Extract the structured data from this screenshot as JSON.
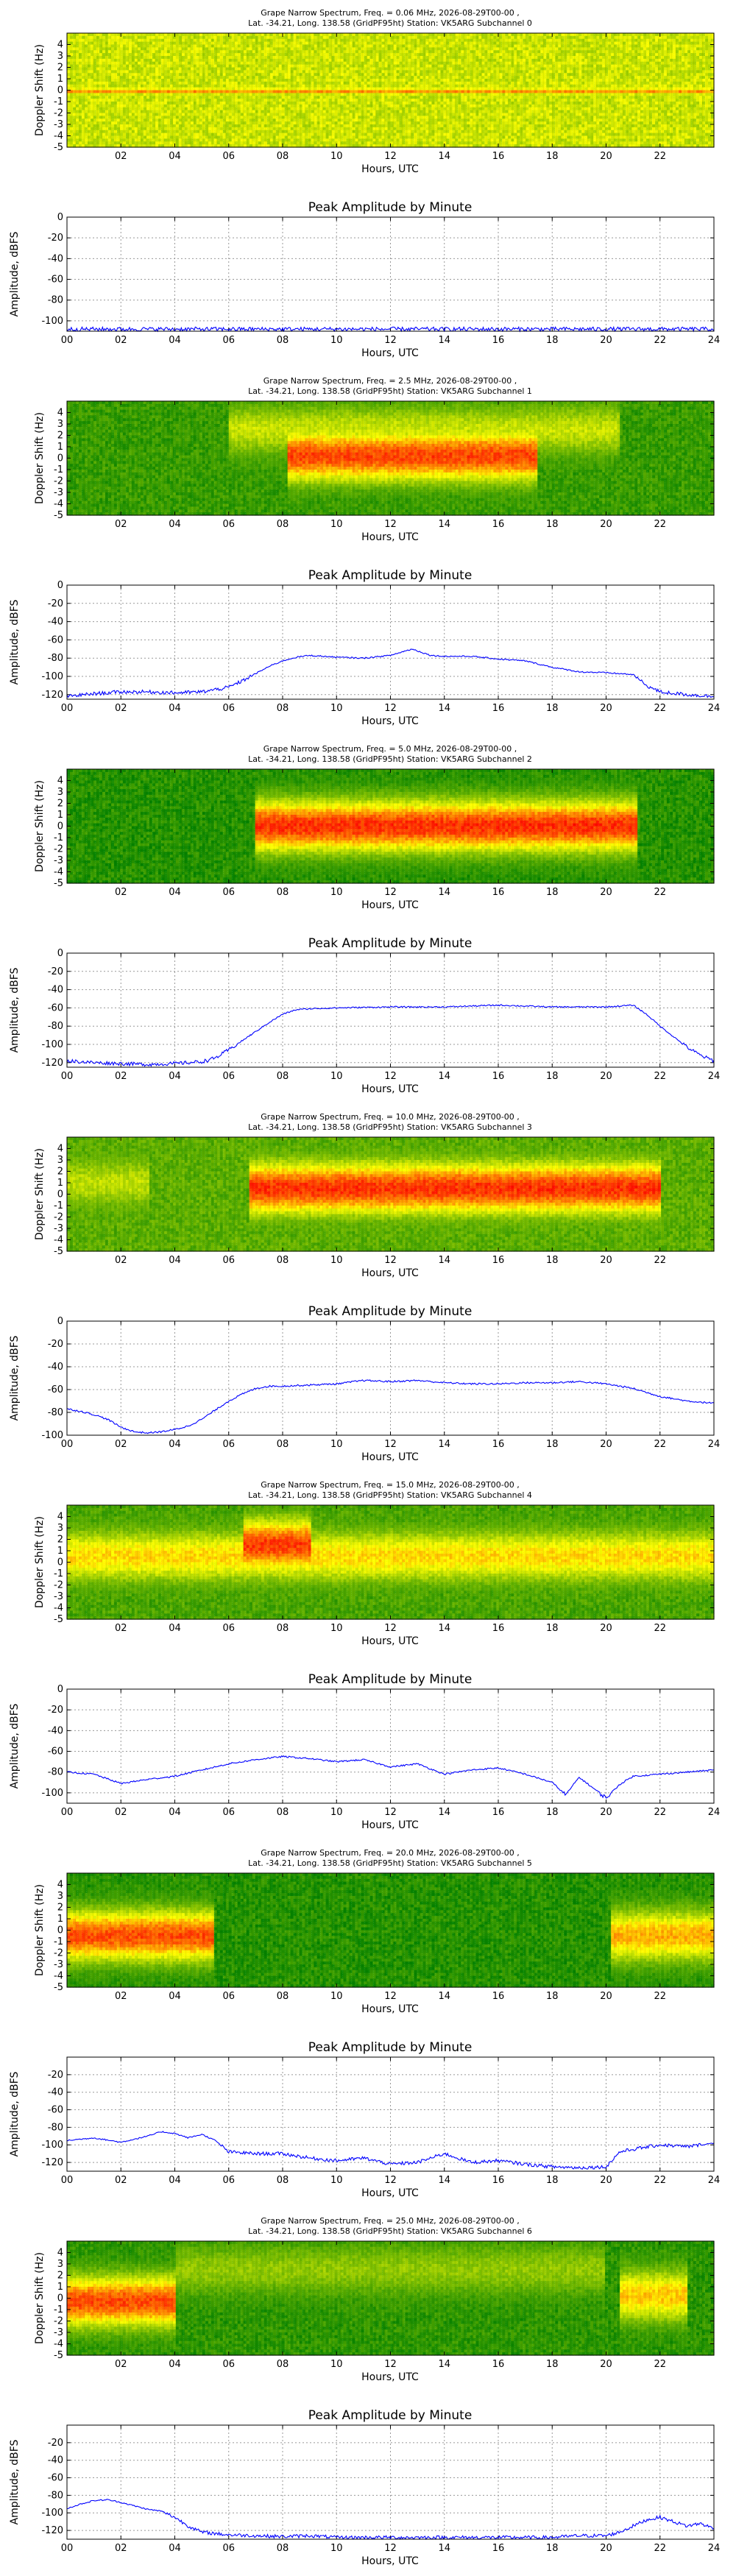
{
  "chart_data": [
    {
      "type": "heatmap",
      "subchannel": 0,
      "title_line1": "Grape Narrow Spectrum, Freq. = 0.06 MHz, 2026-08-29T00-00 ,",
      "title_line2": "Lat. -34.21, Long. 138.58 (GridPF95ht) Station: VK5ARG Subchannel 0",
      "xlabel": "Hours, UTC",
      "ylabel": "Doppler Shift (Hz)",
      "xlim": [
        0,
        24
      ],
      "ylim": [
        -5,
        5
      ],
      "xticks": [
        "02",
        "04",
        "06",
        "08",
        "10",
        "12",
        "14",
        "16",
        "18",
        "20",
        "22"
      ],
      "yticks": [
        "4",
        "3",
        "2",
        "1",
        "0",
        "-1",
        "-2",
        "-3",
        "-4",
        "-5"
      ],
      "colormap": [
        "#008000",
        "#80c000",
        "#ffff00",
        "#ff8000",
        "#ff0000"
      ],
      "features": [
        {
          "start": 0,
          "end": 24,
          "doppler": -0.1,
          "level": 0.62
        }
      ],
      "background_level": 0.5
    },
    {
      "type": "line",
      "title": "Peak Amplitude by Minute",
      "xlabel": "Hours, UTC",
      "ylabel": "Amplitude, dBFS",
      "xlim": [
        0,
        24
      ],
      "ylim": [
        -110,
        0
      ],
      "xticks": [
        "00",
        "02",
        "04",
        "06",
        "08",
        "10",
        "12",
        "14",
        "16",
        "18",
        "20",
        "22",
        "24"
      ],
      "yticks": [
        "0",
        "-20",
        "-40",
        "-60",
        "-80",
        "-100"
      ],
      "grid": true,
      "line_color": "#0000ff",
      "x": [
        0,
        1,
        2,
        3,
        4,
        5,
        6,
        7,
        8,
        9,
        10,
        11,
        12,
        13,
        14,
        15,
        16,
        17,
        18,
        19,
        20,
        21,
        22,
        23,
        24
      ],
      "y": [
        -108,
        -108,
        -108,
        -108,
        -108,
        -108,
        -108,
        -108,
        -108,
        -108,
        -108,
        -108,
        -108,
        -108,
        -108,
        -108,
        -108,
        -108,
        -108,
        -108,
        -108,
        -108,
        -108,
        -108,
        -108
      ]
    },
    {
      "type": "heatmap",
      "subchannel": 1,
      "title_line1": "Grape Narrow Spectrum, Freq. = 2.5 MHz, 2026-08-29T00-00 ,",
      "title_line2": "Lat. -34.21, Long. 138.58 (GridPF95ht) Station: VK5ARG Subchannel 1",
      "xlabel": "Hours, UTC",
      "ylabel": "Doppler Shift (Hz)",
      "xlim": [
        0,
        24
      ],
      "ylim": [
        -5,
        5
      ],
      "xticks": [
        "02",
        "04",
        "06",
        "08",
        "10",
        "12",
        "14",
        "16",
        "18",
        "20",
        "22"
      ],
      "yticks": [
        "4",
        "3",
        "2",
        "1",
        "0",
        "-1",
        "-2",
        "-3",
        "-4",
        "-5"
      ],
      "features": [
        {
          "start": 8.2,
          "end": 17.5,
          "doppler": 0.2,
          "level": 0.85
        },
        {
          "start": 6.0,
          "end": 20.5,
          "doppler": 2.5,
          "level": 0.45
        }
      ],
      "background_level": 0.15
    },
    {
      "type": "line",
      "title": "Peak Amplitude by Minute",
      "xlabel": "Hours, UTC",
      "ylabel": "Amplitude, dBFS",
      "xlim": [
        0,
        24
      ],
      "ylim": [
        -125,
        0
      ],
      "xticks": [
        "00",
        "02",
        "04",
        "06",
        "08",
        "10",
        "12",
        "14",
        "16",
        "18",
        "20",
        "22",
        "24"
      ],
      "yticks": [
        "0",
        "-20",
        "-40",
        "-60",
        "-80",
        "-100",
        "-120"
      ],
      "grid": true,
      "line_color": "#0000ff",
      "x": [
        0,
        1,
        2,
        3,
        4,
        5,
        6,
        6.5,
        7,
        7.5,
        8,
        8.5,
        9,
        10,
        11,
        12,
        12.8,
        13.5,
        14,
        15,
        16,
        17,
        18,
        19,
        20,
        21,
        21.5,
        22,
        23,
        24
      ],
      "y": [
        -122,
        -119,
        -117,
        -117,
        -118,
        -117,
        -112,
        -105,
        -97,
        -89,
        -83,
        -79,
        -77,
        -79,
        -80,
        -77,
        -70,
        -77,
        -78,
        -78,
        -81,
        -83,
        -90,
        -95,
        -96,
        -98,
        -110,
        -117,
        -120,
        -122
      ]
    },
    {
      "type": "heatmap",
      "subchannel": 2,
      "title_line1": "Grape Narrow Spectrum, Freq. = 5.0 MHz, 2026-08-29T00-00 ,",
      "title_line2": "Lat. -34.21, Long. 138.58 (GridPF95ht) Station: VK5ARG Subchannel 2",
      "xlabel": "Hours, UTC",
      "ylabel": "Doppler Shift (Hz)",
      "xlim": [
        0,
        24
      ],
      "ylim": [
        -5,
        5
      ],
      "xticks": [
        "02",
        "04",
        "06",
        "08",
        "10",
        "12",
        "14",
        "16",
        "18",
        "20",
        "22"
      ],
      "yticks": [
        "4",
        "3",
        "2",
        "1",
        "0",
        "-1",
        "-2",
        "-3",
        "-4",
        "-5"
      ],
      "features": [
        {
          "start": 7.0,
          "end": 21.2,
          "doppler": 0.0,
          "level": 0.9
        }
      ],
      "background_level": 0.1
    },
    {
      "type": "line",
      "title": "Peak Amplitude by Minute",
      "xlabel": "Hours, UTC",
      "ylabel": "Amplitude, dBFS",
      "xlim": [
        0,
        24
      ],
      "ylim": [
        -125,
        0
      ],
      "xticks": [
        "00",
        "02",
        "04",
        "06",
        "08",
        "10",
        "12",
        "14",
        "16",
        "18",
        "20",
        "22",
        "24"
      ],
      "yticks": [
        "0",
        "-20",
        "-40",
        "-60",
        "-80",
        "-100",
        "-120"
      ],
      "grid": true,
      "line_color": "#0000ff",
      "x": [
        0,
        1,
        2,
        3,
        4,
        5,
        5.5,
        6,
        6.5,
        7,
        7.5,
        8,
        8.5,
        9,
        10,
        12,
        14,
        16,
        18,
        20,
        21,
        21.5,
        22,
        23,
        23.5,
        24
      ],
      "y": [
        -118,
        -120,
        -121,
        -122,
        -121,
        -119,
        -115,
        -106,
        -96,
        -86,
        -76,
        -67,
        -62,
        -61,
        -60,
        -59,
        -59,
        -57,
        -59,
        -59,
        -57,
        -67,
        -80,
        -103,
        -112,
        -118
      ]
    },
    {
      "type": "heatmap",
      "subchannel": 3,
      "title_line1": "Grape Narrow Spectrum, Freq. = 10.0 MHz, 2026-08-29T00-00 ,",
      "title_line2": "Lat. -34.21, Long. 138.58 (GridPF95ht) Station: VK5ARG Subchannel 3",
      "xlabel": "Hours, UTC",
      "ylabel": "Doppler Shift (Hz)",
      "xlim": [
        0,
        24
      ],
      "ylim": [
        -5,
        5
      ],
      "xticks": [
        "02",
        "04",
        "06",
        "08",
        "10",
        "12",
        "14",
        "16",
        "18",
        "20",
        "22"
      ],
      "yticks": [
        "4",
        "3",
        "2",
        "1",
        "0",
        "-1",
        "-2",
        "-3",
        "-4",
        "-5"
      ],
      "features": [
        {
          "start": 6.8,
          "end": 22.0,
          "doppler": 0.5,
          "level": 0.85
        },
        {
          "start": 0.0,
          "end": 3.0,
          "doppler": 1.0,
          "level": 0.4
        }
      ],
      "background_level": 0.25
    },
    {
      "type": "line",
      "title": "Peak Amplitude by Minute",
      "xlabel": "Hours, UTC",
      "ylabel": "Amplitude, dBFS",
      "xlim": [
        0,
        24
      ],
      "ylim": [
        -100,
        0
      ],
      "xticks": [
        "00",
        "02",
        "04",
        "06",
        "08",
        "10",
        "12",
        "14",
        "16",
        "18",
        "20",
        "22",
        "24"
      ],
      "yticks": [
        "0",
        "-20",
        "-40",
        "-60",
        "-80",
        "-100"
      ],
      "grid": true,
      "line_color": "#0000ff",
      "x": [
        0,
        0.5,
        1,
        1.5,
        2,
        2.5,
        3,
        3.5,
        4,
        4.5,
        5,
        5.5,
        6,
        6.5,
        7,
        7.5,
        8,
        9,
        10,
        11,
        12,
        13,
        14,
        15,
        16,
        17,
        18,
        19,
        20,
        21,
        22,
        23,
        24
      ],
      "y": [
        -77,
        -79,
        -82,
        -86,
        -93,
        -97,
        -98,
        -97,
        -95,
        -92,
        -86,
        -78,
        -70,
        -64,
        -59,
        -57,
        -57,
        -56,
        -55,
        -52,
        -53,
        -52,
        -54,
        -55,
        -55,
        -54,
        -54,
        -53,
        -55,
        -59,
        -66,
        -70,
        -72
      ]
    },
    {
      "type": "heatmap",
      "subchannel": 4,
      "title_line1": "Grape Narrow Spectrum, Freq. = 15.0 MHz, 2026-08-29T00-00 ,",
      "title_line2": "Lat. -34.21, Long. 138.58 (GridPF95ht) Station: VK5ARG Subchannel 4",
      "xlabel": "Hours, UTC",
      "ylabel": "Doppler Shift (Hz)",
      "xlim": [
        0,
        24
      ],
      "ylim": [
        -5,
        5
      ],
      "xticks": [
        "02",
        "04",
        "06",
        "08",
        "10",
        "12",
        "14",
        "16",
        "18",
        "20",
        "22"
      ],
      "yticks": [
        "4",
        "3",
        "2",
        "1",
        "0",
        "-1",
        "-2",
        "-3",
        "-4",
        "-5"
      ],
      "features": [
        {
          "start": 0.0,
          "end": 24.0,
          "doppler": 0.5,
          "level": 0.6
        },
        {
          "start": 6.5,
          "end": 9.0,
          "doppler": 1.5,
          "level": 0.85
        }
      ],
      "background_level": 0.2
    },
    {
      "type": "line",
      "title": "Peak Amplitude by Minute",
      "xlabel": "Hours, UTC",
      "ylabel": "Amplitude, dBFS",
      "xlim": [
        0,
        24
      ],
      "ylim": [
        -110,
        0
      ],
      "xticks": [
        "00",
        "02",
        "04",
        "06",
        "08",
        "10",
        "12",
        "14",
        "16",
        "18",
        "20",
        "22",
        "24"
      ],
      "yticks": [
        "0",
        "-20",
        "-40",
        "-60",
        "-80",
        "-100"
      ],
      "grid": true,
      "line_color": "#0000ff",
      "x": [
        0,
        1,
        2,
        3,
        4,
        5,
        6,
        7,
        8,
        9,
        10,
        11,
        12,
        13,
        14,
        15,
        16,
        17,
        18,
        18.5,
        19,
        19.5,
        20,
        20.5,
        21,
        22,
        23,
        24
      ],
      "y": [
        -80,
        -82,
        -91,
        -87,
        -84,
        -78,
        -72,
        -68,
        -65,
        -67,
        -70,
        -68,
        -75,
        -72,
        -82,
        -78,
        -76,
        -82,
        -90,
        -102,
        -85,
        -95,
        -105,
        -92,
        -84,
        -82,
        -80,
        -78
      ]
    },
    {
      "type": "heatmap",
      "subchannel": 5,
      "title_line1": "Grape Narrow Spectrum, Freq. = 20.0 MHz, 2026-08-29T00-00 ,",
      "title_line2": "Lat. -34.21, Long. 138.58 (GridPF95ht) Station: VK5ARG Subchannel 5",
      "xlabel": "Hours, UTC",
      "ylabel": "Doppler Shift (Hz)",
      "xlim": [
        0,
        24
      ],
      "ylim": [
        -5,
        5
      ],
      "xticks": [
        "02",
        "04",
        "06",
        "08",
        "10",
        "12",
        "14",
        "16",
        "18",
        "20",
        "22"
      ],
      "yticks": [
        "4",
        "3",
        "2",
        "1",
        "0",
        "-1",
        "-2",
        "-3",
        "-4",
        "-5"
      ],
      "features": [
        {
          "start": 0.0,
          "end": 5.5,
          "doppler": -0.5,
          "level": 0.85
        },
        {
          "start": 20.2,
          "end": 24.0,
          "doppler": -0.5,
          "level": 0.7
        }
      ],
      "background_level": 0.1
    },
    {
      "type": "line",
      "title": "Peak Amplitude by Minute",
      "xlabel": "Hours, UTC",
      "ylabel": "Amplitude, dBFS",
      "xlim": [
        0,
        24
      ],
      "ylim": [
        -130,
        0
      ],
      "xticks": [
        "00",
        "02",
        "04",
        "06",
        "08",
        "10",
        "12",
        "14",
        "16",
        "18",
        "20",
        "22",
        "24"
      ],
      "yticks": [
        "-20",
        "-40",
        "-60",
        "-80",
        "-100",
        "-120"
      ],
      "grid": true,
      "line_color": "#0000ff",
      "x": [
        0,
        1,
        2,
        3,
        3.5,
        4,
        4.5,
        5,
        5.5,
        6,
        7,
        8,
        9,
        10,
        11,
        12,
        13,
        14,
        15,
        16,
        17,
        18,
        19,
        20,
        20.5,
        21,
        22,
        23,
        24
      ],
      "y": [
        -95,
        -92,
        -97,
        -90,
        -85,
        -87,
        -92,
        -88,
        -95,
        -108,
        -110,
        -110,
        -115,
        -118,
        -115,
        -122,
        -120,
        -110,
        -120,
        -118,
        -122,
        -125,
        -126,
        -125,
        -108,
        -105,
        -100,
        -102,
        -98
      ]
    },
    {
      "type": "heatmap",
      "subchannel": 6,
      "title_line1": "Grape Narrow Spectrum, Freq. = 25.0 MHz, 2026-08-29T00-00 ,",
      "title_line2": "Lat. -34.21, Long. 138.58 (GridPF95ht) Station: VK5ARG Subchannel 6",
      "xlabel": "Hours, UTC",
      "ylabel": "Doppler Shift (Hz)",
      "xlim": [
        0,
        24
      ],
      "ylim": [
        -5,
        5
      ],
      "xticks": [
        "02",
        "04",
        "06",
        "08",
        "10",
        "12",
        "14",
        "16",
        "18",
        "20",
        "22"
      ],
      "yticks": [
        "4",
        "3",
        "2",
        "1",
        "0",
        "-1",
        "-2",
        "-3",
        "-4",
        "-5"
      ],
      "features": [
        {
          "start": 0.0,
          "end": 4.0,
          "doppler": -0.3,
          "level": 0.85
        },
        {
          "start": 4.0,
          "end": 20.0,
          "doppler": 2.5,
          "level": 0.35
        },
        {
          "start": 20.5,
          "end": 23.0,
          "doppler": 0.2,
          "level": 0.65
        }
      ],
      "background_level": 0.12
    },
    {
      "type": "line",
      "title": "Peak Amplitude by Minute",
      "xlabel": "Hours, UTC",
      "ylabel": "Amplitude, dBFS",
      "xlim": [
        0,
        24
      ],
      "ylim": [
        -130,
        0
      ],
      "xticks": [
        "00",
        "02",
        "04",
        "06",
        "08",
        "10",
        "12",
        "14",
        "16",
        "18",
        "20",
        "22",
        "24"
      ],
      "yticks": [
        "-20",
        "-40",
        "-60",
        "-80",
        "-100",
        "-120"
      ],
      "grid": true,
      "line_color": "#0000ff",
      "x": [
        0,
        0.5,
        1,
        1.5,
        2,
        2.5,
        3,
        3.5,
        4,
        4.5,
        5,
        6,
        7,
        8,
        9,
        10,
        12,
        14,
        16,
        18,
        19,
        20,
        20.5,
        21,
        21.5,
        22,
        22.5,
        23,
        23.5,
        24
      ],
      "y": [
        -95,
        -90,
        -86,
        -85,
        -88,
        -92,
        -96,
        -98,
        -105,
        -115,
        -122,
        -125,
        -126,
        -127,
        -126,
        -128,
        -128,
        -128,
        -128,
        -128,
        -126,
        -126,
        -122,
        -115,
        -108,
        -105,
        -110,
        -115,
        -112,
        -118
      ]
    }
  ]
}
